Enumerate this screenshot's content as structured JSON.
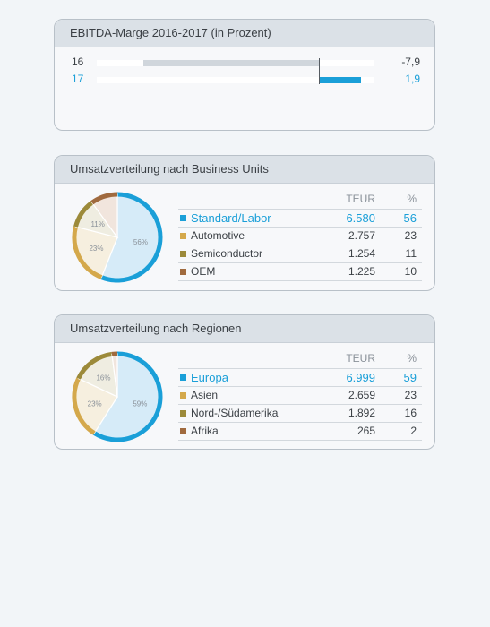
{
  "chart_data": [
    {
      "type": "bar",
      "title": "EBITDA-Marge 2016-2017 (in Prozent)",
      "categories": [
        "16",
        "17"
      ],
      "values": [
        -7.9,
        1.9
      ],
      "value_labels": [
        "-7,9",
        "1,9"
      ],
      "highlight_color": "#1a9fd8",
      "negative_color": "#d0d6dc"
    },
    {
      "type": "pie",
      "title": "Umsatzverteilung nach Business Units",
      "col_teur": "TEUR",
      "col_pct": "%",
      "slices": [
        {
          "label": "Standard/Labor",
          "teur": "6.580",
          "pct": 56,
          "color": "#1a9fd8",
          "fill": "#d6ebf8"
        },
        {
          "label": "Automotive",
          "teur": "2.757",
          "pct": 23,
          "color": "#d4a84b",
          "fill": "#f6efdf"
        },
        {
          "label": "Semiconductor",
          "teur": "1.254",
          "pct": 11,
          "color": "#9c8a3a",
          "fill": "#efede1"
        },
        {
          "label": "OEM",
          "teur": "1.225",
          "pct": 10,
          "color": "#a06a3e",
          "fill": "#f1e5dd"
        }
      ],
      "pie_labels": [
        "56%",
        "23%",
        "11%",
        ""
      ]
    },
    {
      "type": "pie",
      "title": "Umsatzverteilung nach Regionen",
      "col_teur": "TEUR",
      "col_pct": "%",
      "slices": [
        {
          "label": "Europa",
          "teur": "6.999",
          "pct": 59,
          "color": "#1a9fd8",
          "fill": "#d6ebf8"
        },
        {
          "label": "Asien",
          "teur": "2.659",
          "pct": 23,
          "color": "#d4a84b",
          "fill": "#f6efdf"
        },
        {
          "label": "Nord-/Südamerika",
          "teur": "1.892",
          "pct": 16,
          "color": "#9c8a3a",
          "fill": "#efede1"
        },
        {
          "label": "Afrika",
          "teur": "265",
          "pct": 2,
          "color": "#a06a3e",
          "fill": "#f1e5dd"
        }
      ],
      "pie_labels": [
        "59%",
        "23%",
        "16%",
        ""
      ]
    }
  ]
}
